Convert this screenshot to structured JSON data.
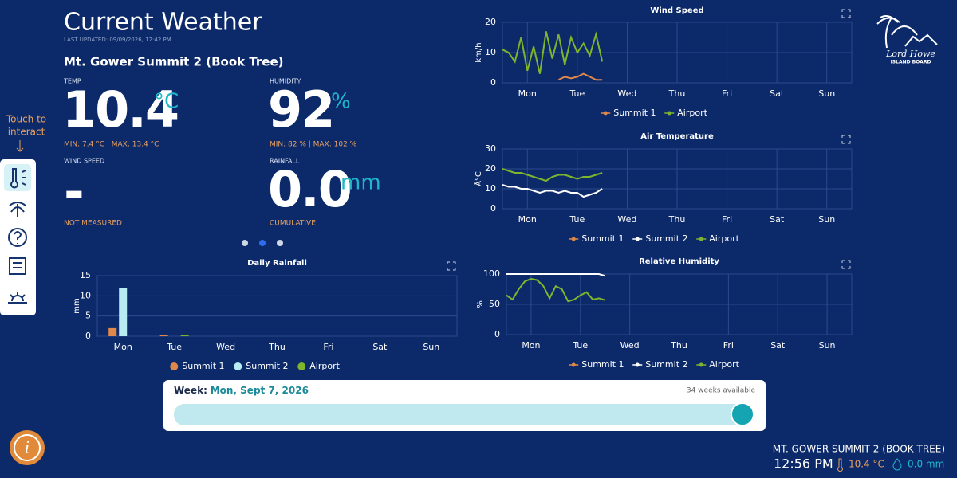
{
  "header": {
    "title": "Current Weather",
    "last_updated": "LAST UPDATED: 09/09/2026, 12:42 PM",
    "station": "Mt. Gower Summit 2 (Book Tree)"
  },
  "readings": {
    "temp": {
      "label": "TEMP",
      "value": "10.4",
      "unit": "°C",
      "note": "MIN: 7.4 °C | MAX: 13.4 °C"
    },
    "humidity": {
      "label": "HUMIDITY",
      "value": "92",
      "unit": "%",
      "note": "MIN: 82 % | MAX: 102 %"
    },
    "wind": {
      "label": "WIND SPEED",
      "value": "-",
      "note": "NOT MEASURED"
    },
    "rainfall": {
      "label": "RAINFALL",
      "value": "0.0",
      "unit": "mm",
      "note": "CUMULATIVE"
    }
  },
  "sidebar": {
    "hint": [
      "Touch to",
      "interact"
    ]
  },
  "week": {
    "label": "Week:",
    "date": "Mon, Sept 7, 2026",
    "available": "34 weeks available"
  },
  "footer": {
    "station": "MT. GOWER SUMMIT 2 (BOOK TREE)",
    "time": "12:56 PM",
    "temp": "10.4 °C",
    "rain": "0.0 mm"
  },
  "logo": {
    "line1": "Lord Howe",
    "line2": "ISLAND BOARD"
  },
  "chart_data": [
    {
      "type": "line",
      "title": "Wind Speed",
      "ylabel": "km/h",
      "ylim": [
        0,
        20
      ],
      "yticks": [
        0,
        10,
        20
      ],
      "xlim": [
        0,
        168
      ],
      "xticks": [
        {
          "value": 12,
          "label": "Mon"
        },
        {
          "value": 36,
          "label": "Tue"
        },
        {
          "value": 60,
          "label": "Wed"
        },
        {
          "value": 84,
          "label": "Thu"
        },
        {
          "value": 108,
          "label": "Fri"
        },
        {
          "value": 132,
          "label": "Sat"
        },
        {
          "value": 156,
          "label": "Sun"
        }
      ],
      "series": [
        {
          "name": "Summit 1",
          "color": "#e0884a",
          "x": [
            27,
            30,
            33,
            36,
            39,
            42,
            45,
            48
          ],
          "values": [
            1,
            2,
            1.5,
            2,
            3,
            2,
            1,
            1
          ]
        },
        {
          "name": "Airport",
          "color": "#7fb52d",
          "x": [
            0,
            3,
            6,
            9,
            12,
            15,
            18,
            21,
            24,
            27,
            30,
            33,
            36,
            39,
            42,
            45,
            48
          ],
          "values": [
            11,
            10,
            7,
            15,
            4,
            12,
            3,
            17,
            8,
            16,
            6,
            15,
            10,
            13,
            9,
            16,
            7
          ]
        }
      ]
    },
    {
      "type": "line",
      "title": "Air Temperature",
      "ylabel": "Â°C",
      "ylim": [
        0,
        30
      ],
      "yticks": [
        0,
        10,
        20,
        30
      ],
      "xlim": [
        0,
        168
      ],
      "xticks": [
        {
          "value": 12,
          "label": "Mon"
        },
        {
          "value": 36,
          "label": "Tue"
        },
        {
          "value": 60,
          "label": "Wed"
        },
        {
          "value": 84,
          "label": "Thu"
        },
        {
          "value": 108,
          "label": "Fri"
        },
        {
          "value": 132,
          "label": "Sat"
        },
        {
          "value": 156,
          "label": "Sun"
        }
      ],
      "series": [
        {
          "name": "Summit 1",
          "color": "#e0884a",
          "x": [],
          "values": []
        },
        {
          "name": "Summit 2",
          "color": "#ffffff",
          "x": [
            0,
            3,
            6,
            9,
            12,
            15,
            18,
            21,
            24,
            27,
            30,
            33,
            36,
            39,
            42,
            45,
            48
          ],
          "values": [
            12,
            11,
            11,
            10,
            10,
            9,
            8,
            9,
            9,
            8,
            9,
            8,
            8,
            6,
            7,
            8,
            10
          ]
        },
        {
          "name": "Airport",
          "color": "#7fb52d",
          "x": [
            0,
            3,
            6,
            9,
            12,
            15,
            18,
            21,
            24,
            27,
            30,
            33,
            36,
            39,
            42,
            45,
            48
          ],
          "values": [
            20,
            19,
            18,
            18,
            17,
            16,
            15,
            14,
            16,
            17,
            17,
            16,
            15,
            16,
            16,
            17,
            18
          ]
        }
      ]
    },
    {
      "type": "line",
      "title": "Relative Humidity",
      "ylabel": "%",
      "ylim": [
        0,
        100
      ],
      "yticks": [
        0,
        50,
        100
      ],
      "xlim": [
        0,
        168
      ],
      "xticks": [
        {
          "value": 12,
          "label": "Mon"
        },
        {
          "value": 36,
          "label": "Tue"
        },
        {
          "value": 60,
          "label": "Wed"
        },
        {
          "value": 84,
          "label": "Thu"
        },
        {
          "value": 108,
          "label": "Fri"
        },
        {
          "value": 132,
          "label": "Sat"
        },
        {
          "value": 156,
          "label": "Sun"
        }
      ],
      "series": [
        {
          "name": "Summit 1",
          "color": "#e0884a",
          "x": [],
          "values": []
        },
        {
          "name": "Summit 2",
          "color": "#ffffff",
          "x": [
            0,
            3,
            6,
            9,
            12,
            15,
            18,
            21,
            24,
            27,
            30,
            33,
            36,
            39,
            42,
            45,
            48
          ],
          "values": [
            100,
            100,
            100,
            100,
            100,
            100,
            100,
            100,
            100,
            100,
            100,
            100,
            100,
            100,
            100,
            100,
            97
          ]
        },
        {
          "name": "Airport",
          "color": "#7fb52d",
          "x": [
            0,
            3,
            6,
            9,
            12,
            15,
            18,
            21,
            24,
            27,
            30,
            33,
            36,
            39,
            42,
            45,
            48
          ],
          "values": [
            65,
            58,
            75,
            88,
            92,
            90,
            80,
            60,
            80,
            75,
            55,
            58,
            65,
            70,
            58,
            60,
            57
          ]
        }
      ]
    },
    {
      "type": "bar",
      "title": "Daily Rainfall",
      "ylabel": "mm",
      "ylim": [
        0,
        15
      ],
      "yticks": [
        0,
        5,
        10,
        15
      ],
      "categories": [
        "Mon",
        "Tue",
        "Wed",
        "Thu",
        "Fri",
        "Sat",
        "Sun"
      ],
      "series": [
        {
          "name": "Summit 1",
          "color": "#e0884a",
          "values": [
            2,
            0.2,
            null,
            null,
            null,
            null,
            null
          ]
        },
        {
          "name": "Summit 2",
          "color": "#b9ecf2",
          "values": [
            12,
            0,
            null,
            null,
            null,
            null,
            null
          ]
        },
        {
          "name": "Airport",
          "color": "#7fb52d",
          "values": [
            null,
            0.2,
            null,
            null,
            null,
            null,
            null
          ]
        }
      ]
    }
  ]
}
